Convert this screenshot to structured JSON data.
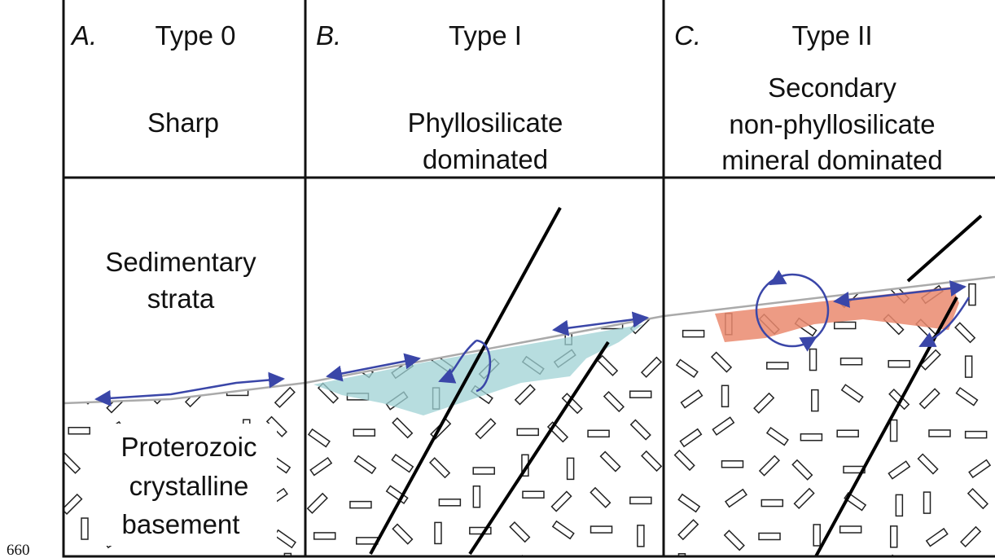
{
  "page_label": "660",
  "panels": [
    {
      "letter": "A.",
      "type": "Type 0",
      "description": [
        "Sharp"
      ]
    },
    {
      "letter": "B.",
      "type": "Type I",
      "description": [
        "Phyllosilicate",
        "dominated"
      ]
    },
    {
      "letter": "C.",
      "type": "Type II",
      "description": [
        "Secondary",
        "non-phyllosilicate",
        "mineral dominated"
      ]
    }
  ],
  "labels": {
    "strata": [
      "Sedimentary",
      "strata"
    ],
    "basement": [
      "Proterozoic",
      "crystalline",
      "basement"
    ]
  }
}
